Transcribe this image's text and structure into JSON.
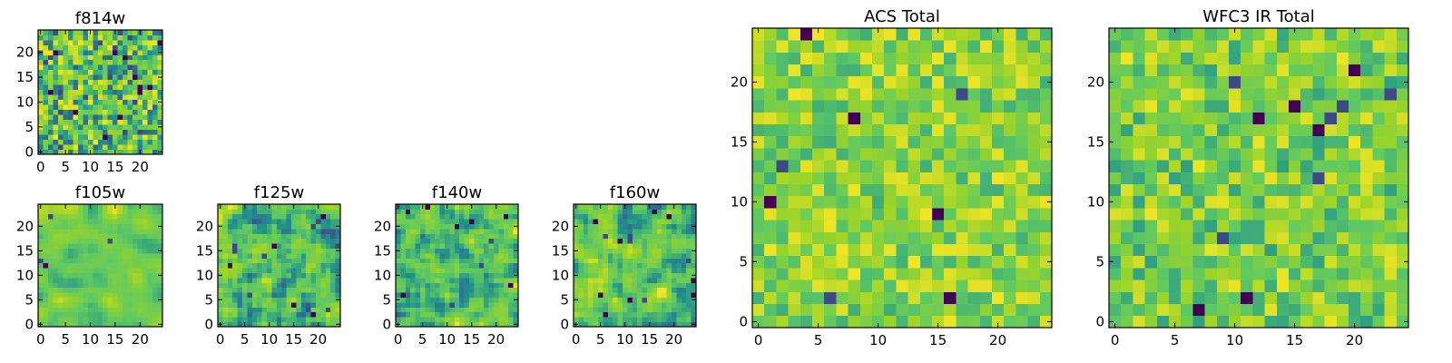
{
  "figure": {
    "background": "#ffffff"
  },
  "colormap": {
    "name": "viridis",
    "stops": [
      "#440154",
      "#3b528b",
      "#21918c",
      "#5ec962",
      "#9ad42a",
      "#fde725"
    ]
  },
  "chart_data": [
    {
      "id": "f814w",
      "type": "heatmap",
      "title": "f814w",
      "grid_size": 25,
      "xlim": [
        -0.5,
        24.5
      ],
      "ylim": [
        -0.5,
        24.5
      ],
      "xticks": [
        0,
        5,
        10,
        15,
        20
      ],
      "yticks": [
        0,
        5,
        10,
        15,
        20
      ],
      "seed": 11,
      "smooth": 0,
      "dark_cells": 28,
      "value_range": [
        0.25,
        0.98
      ]
    },
    {
      "id": "f105w",
      "type": "heatmap",
      "title": "f105w",
      "grid_size": 25,
      "xlim": [
        -0.5,
        24.5
      ],
      "ylim": [
        -0.5,
        24.5
      ],
      "xticks": [
        0,
        5,
        10,
        15,
        20
      ],
      "yticks": [
        0,
        5,
        10,
        15,
        20
      ],
      "seed": 23,
      "smooth": 2,
      "dark_cells": 4,
      "value_range": [
        0.45,
        0.97
      ]
    },
    {
      "id": "f125w",
      "type": "heatmap",
      "title": "f125w",
      "grid_size": 25,
      "xlim": [
        -0.5,
        24.5
      ],
      "ylim": [
        -0.5,
        24.5
      ],
      "xticks": [
        0,
        5,
        10,
        15,
        20
      ],
      "yticks": [
        0,
        5,
        10,
        15,
        20
      ],
      "seed": 37,
      "smooth": 1,
      "dark_cells": 14,
      "value_range": [
        0.2,
        0.98
      ]
    },
    {
      "id": "f140w",
      "type": "heatmap",
      "title": "f140w",
      "grid_size": 25,
      "xlim": [
        -0.5,
        24.5
      ],
      "ylim": [
        -0.5,
        24.5
      ],
      "xticks": [
        0,
        5,
        10,
        15,
        20
      ],
      "yticks": [
        0,
        5,
        10,
        15,
        20
      ],
      "seed": 41,
      "smooth": 1,
      "dark_cells": 10,
      "value_range": [
        0.25,
        0.98
      ]
    },
    {
      "id": "f160w",
      "type": "heatmap",
      "title": "f160w",
      "grid_size": 25,
      "xlim": [
        -0.5,
        24.5
      ],
      "ylim": [
        -0.5,
        24.5
      ],
      "xticks": [
        0,
        5,
        10,
        15,
        20
      ],
      "yticks": [
        0,
        5,
        10,
        15,
        20
      ],
      "seed": 53,
      "smooth": 1,
      "dark_cells": 14,
      "value_range": [
        0.2,
        0.98
      ]
    },
    {
      "id": "acs_total",
      "type": "heatmap",
      "title": "ACS Total",
      "grid_size": 25,
      "xlim": [
        -0.5,
        24.5
      ],
      "ylim": [
        -0.5,
        24.5
      ],
      "xticks": [
        0,
        5,
        10,
        15,
        20
      ],
      "yticks": [
        0,
        5,
        10,
        15,
        20
      ],
      "seed": 67,
      "smooth": 0,
      "dark_cells": 8,
      "value_range": [
        0.5,
        0.98
      ]
    },
    {
      "id": "wfc3_ir_total",
      "type": "heatmap",
      "title": "WFC3 IR Total",
      "grid_size": 25,
      "xlim": [
        -0.5,
        24.5
      ],
      "ylim": [
        -0.5,
        24.5
      ],
      "xticks": [
        0,
        5,
        10,
        15,
        20
      ],
      "yticks": [
        0,
        5,
        10,
        15,
        20
      ],
      "seed": 79,
      "smooth": 0,
      "dark_cells": 12,
      "value_range": [
        0.45,
        0.97
      ]
    }
  ]
}
